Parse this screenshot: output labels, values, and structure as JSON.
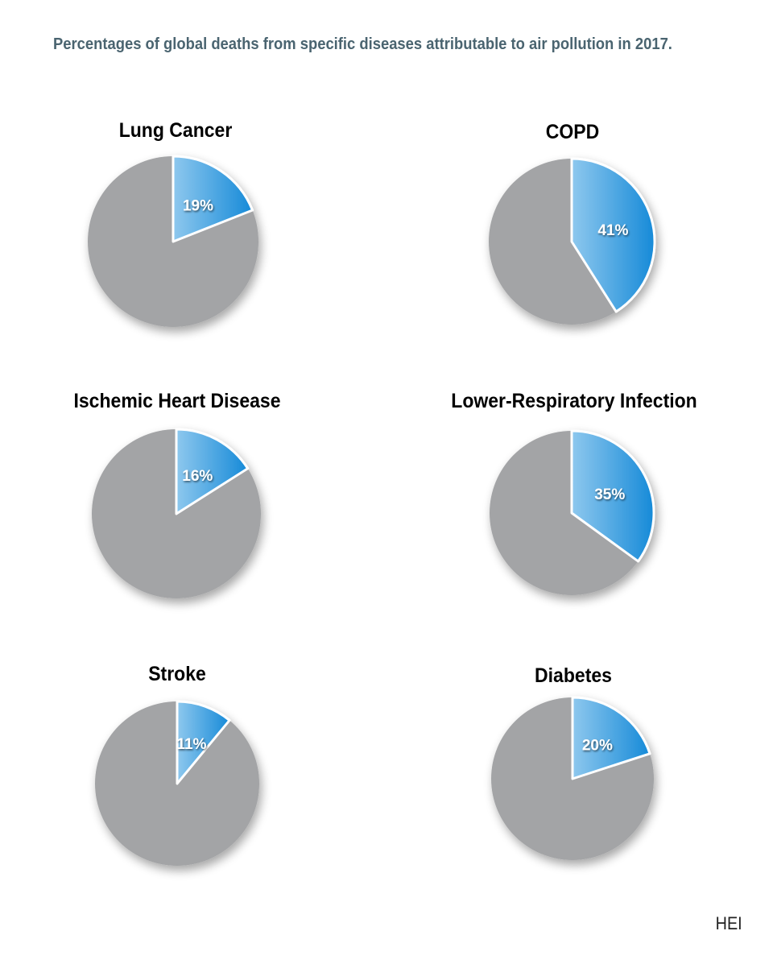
{
  "title": "Percentages of global deaths from specific diseases attributable to air pollution in 2017.",
  "credit": "HEI",
  "colors": {
    "slice_gray": "#a3a4a6",
    "slice_blue_light": "#86c4ec",
    "slice_blue_dark": "#1a8ad8",
    "title_color": "#4a6470",
    "separator": "#ffffff"
  },
  "chart_data": [
    {
      "type": "pie",
      "title": "Lung Cancer",
      "values": [
        19,
        81
      ],
      "labels": [
        "19%",
        ""
      ]
    },
    {
      "type": "pie",
      "title": "COPD",
      "values": [
        41,
        59
      ],
      "labels": [
        "41%",
        ""
      ]
    },
    {
      "type": "pie",
      "title": "Ischemic Heart Disease",
      "values": [
        16,
        84
      ],
      "labels": [
        "16%",
        ""
      ]
    },
    {
      "type": "pie",
      "title": "Lower-Respiratory Infection",
      "values": [
        35,
        65
      ],
      "labels": [
        "35%",
        ""
      ]
    },
    {
      "type": "pie",
      "title": "Stroke",
      "values": [
        11,
        89
      ],
      "labels": [
        "11%",
        ""
      ]
    },
    {
      "type": "pie",
      "title": "Diabetes",
      "values": [
        20,
        80
      ],
      "labels": [
        "20%",
        ""
      ]
    }
  ]
}
